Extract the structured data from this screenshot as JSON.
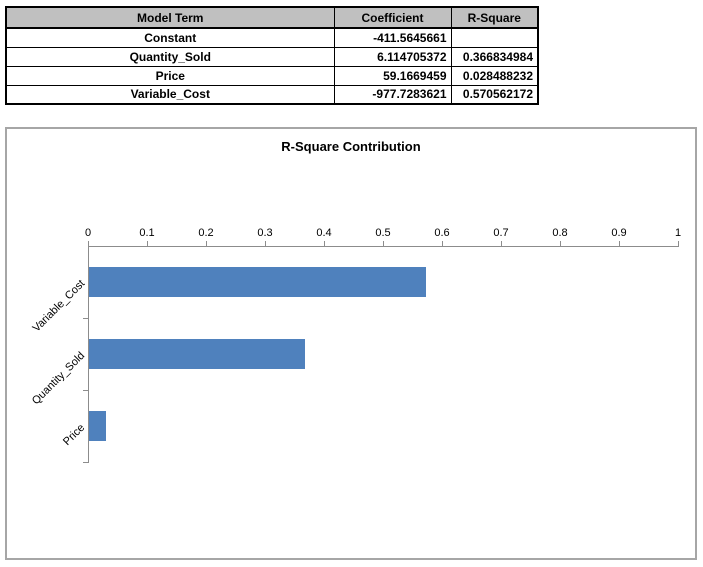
{
  "colors": {
    "bar": "#4F81BD",
    "table_header_bg": "#C0C0C0",
    "axis_line": "#8C8C8C",
    "chart_border": "#A6A6A6"
  },
  "table": {
    "columns": [
      "Model Term",
      "Coefficient",
      "R-Square"
    ],
    "rows": [
      {
        "term": "Constant",
        "coefficient": "-411.5645661",
        "r_square": ""
      },
      {
        "term": "Quantity_Sold",
        "coefficient": "6.114705372",
        "r_square": "0.366834984"
      },
      {
        "term": "Price",
        "coefficient": "59.1669459",
        "r_square": "0.028488232"
      },
      {
        "term": "Variable_Cost",
        "coefficient": "-977.7283621",
        "r_square": "0.570562172"
      }
    ]
  },
  "chart_data": {
    "type": "bar",
    "orientation": "horizontal",
    "title": "R-Square Contribution",
    "categories": [
      "Variable_Cost",
      "Quantity_Sold",
      "Price"
    ],
    "values": [
      0.570562172,
      0.366834984,
      0.028488232
    ],
    "xlabel": "",
    "ylabel": "",
    "xlim": [
      0,
      1
    ],
    "xtick_labels": [
      "0",
      "0.1",
      "0.2",
      "0.3",
      "0.4",
      "0.5",
      "0.6",
      "0.7",
      "0.8",
      "0.9",
      "1"
    ],
    "value_axis_position": "top",
    "grid": false,
    "legend_position": "none",
    "bar_color": "#4F81BD"
  }
}
